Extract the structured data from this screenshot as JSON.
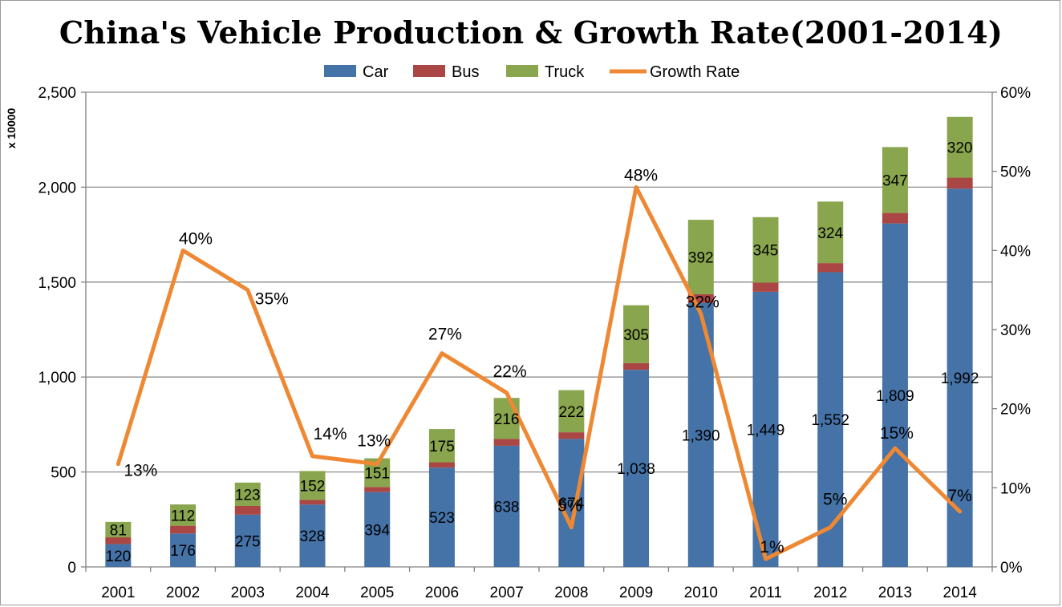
{
  "chart_data": {
    "type": "bar",
    "title": "China's Vehicle Production & Growth Rate(2001-2014)",
    "ylabel": "x 10000",
    "ylim": [
      0,
      2500
    ],
    "y2lim": [
      0,
      0.6
    ],
    "y_ticks": [
      "0",
      "500",
      "1,000",
      "1,500",
      "2,000",
      "2,500"
    ],
    "y2_ticks": [
      "0%",
      "10%",
      "20%",
      "30%",
      "40%",
      "50%",
      "60%"
    ],
    "grid": true,
    "legend_position": "top",
    "stacked": true,
    "categories": [
      "2001",
      "2002",
      "2003",
      "2004",
      "2005",
      "2006",
      "2007",
      "2008",
      "2009",
      "2010",
      "2011",
      "2012",
      "2013",
      "2014"
    ],
    "series": [
      {
        "name": "Car",
        "type": "bar",
        "color": "#4572a7",
        "values": [
          120,
          176,
          275,
          328,
          394,
          523,
          638,
          674,
          1038,
          1390,
          1449,
          1552,
          1809,
          1992
        ],
        "labels": [
          "120",
          "176",
          "275",
          "328",
          "394",
          "523",
          "638",
          "674",
          "1,038",
          "1,390",
          "1,449",
          "1,552",
          "1,809",
          "1,992"
        ]
      },
      {
        "name": "Bus",
        "type": "bar",
        "color": "#aa4643",
        "values": [
          36,
          41,
          46,
          25,
          27,
          28,
          36,
          35,
          35,
          46,
          48,
          48,
          55,
          58
        ]
      },
      {
        "name": "Truck",
        "type": "bar",
        "color": "#89a54e",
        "values": [
          81,
          112,
          123,
          152,
          151,
          175,
          216,
          222,
          305,
          392,
          345,
          324,
          347,
          320
        ],
        "labels": [
          "81",
          "112",
          "123",
          "152",
          "151",
          "175",
          "216",
          "222",
          "305",
          "392",
          "345",
          "324",
          "347",
          "320"
        ]
      },
      {
        "name": "Growth Rate",
        "type": "line",
        "axis": "right",
        "color": "#ee8833",
        "values": [
          0.13,
          0.4,
          0.35,
          0.14,
          0.13,
          0.27,
          0.22,
          0.05,
          0.48,
          0.32,
          0.01,
          0.05,
          0.15,
          0.07
        ],
        "labels": [
          "13%",
          "40%",
          "35%",
          "14%",
          "13%",
          "27%",
          "22%",
          "5%",
          "48%",
          "32%",
          "1%",
          "5%",
          "15%",
          "7%"
        ]
      }
    ]
  }
}
